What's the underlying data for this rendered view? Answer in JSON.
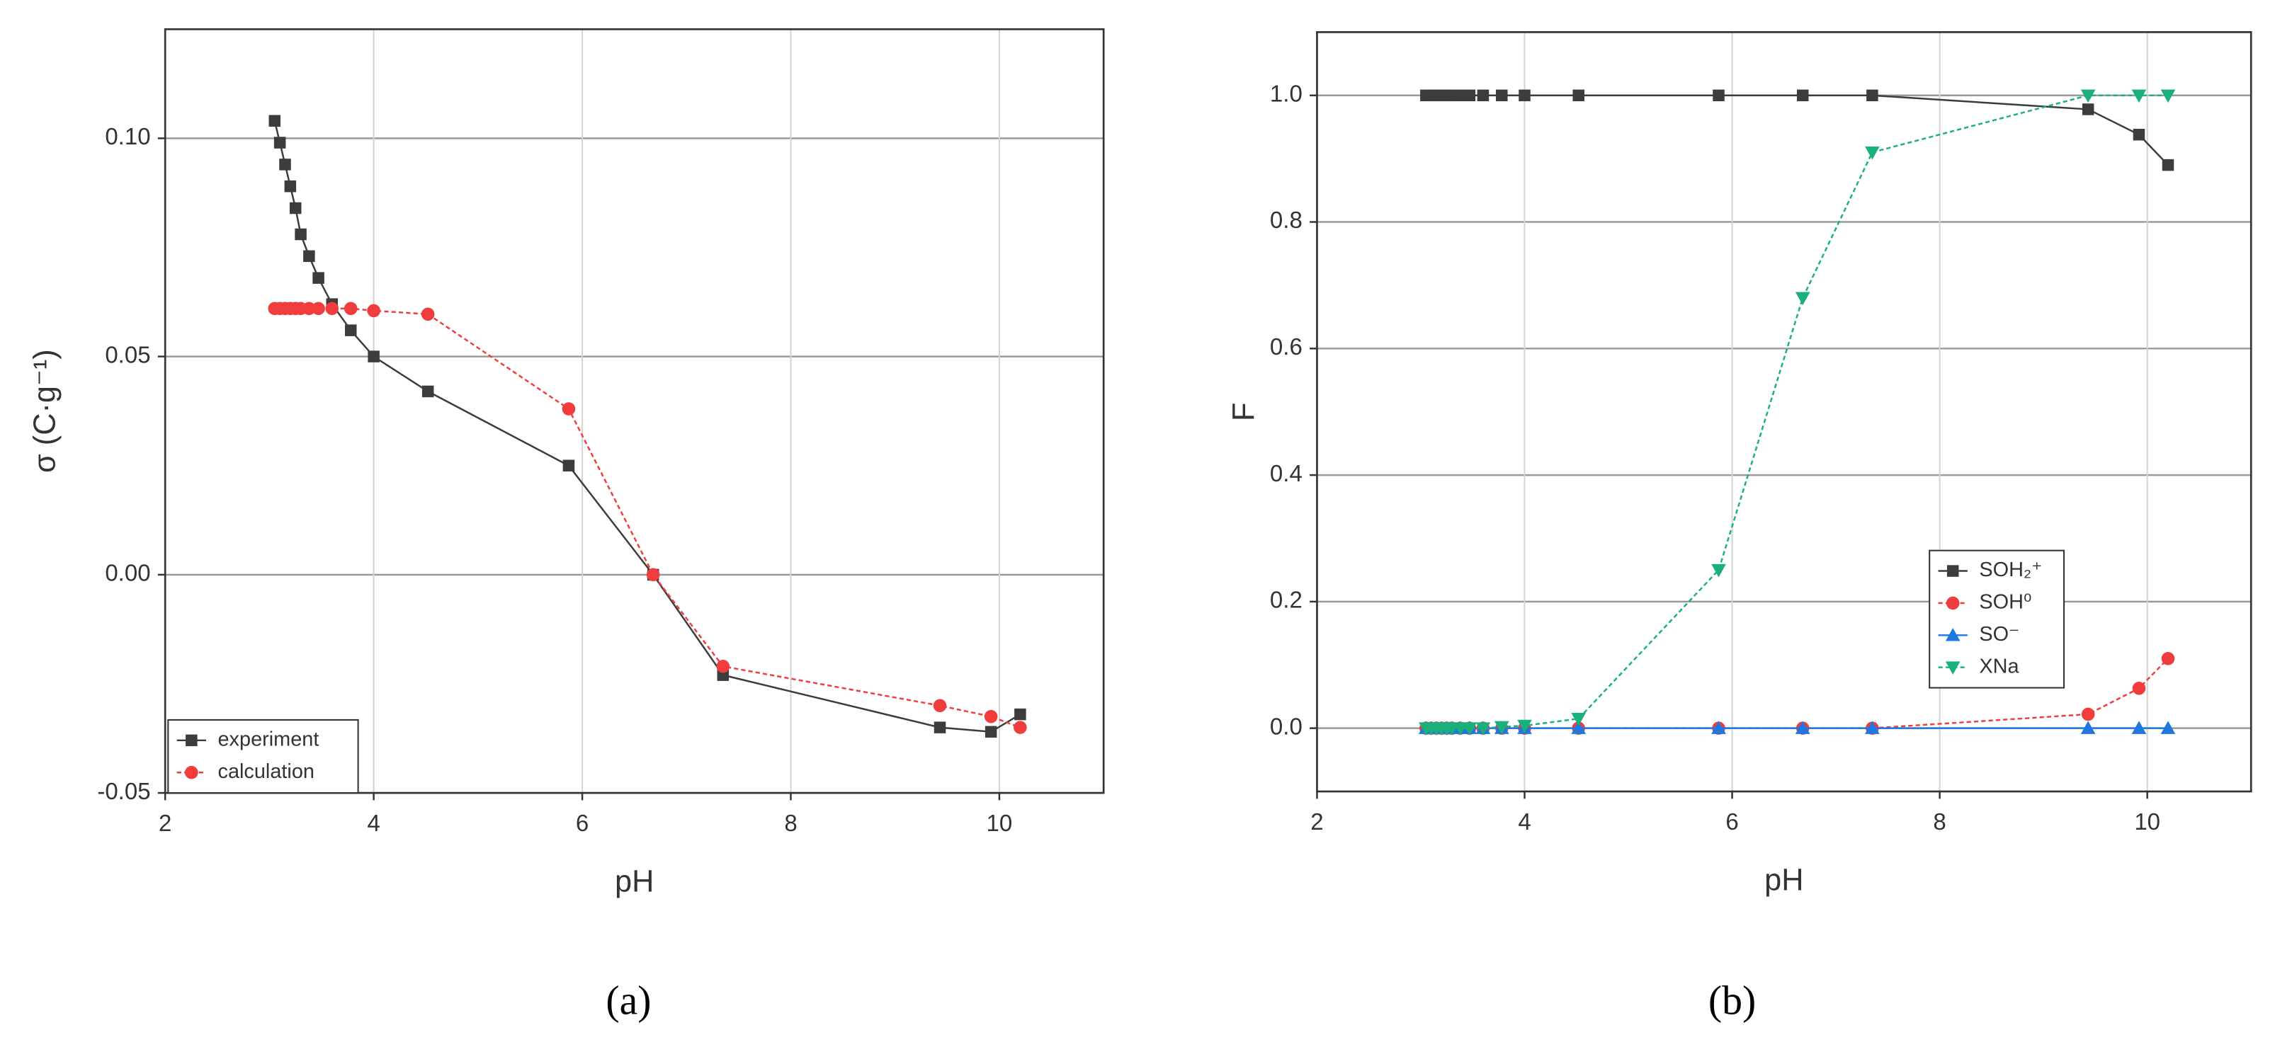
{
  "chart_data": [
    {
      "type": "line",
      "x_label": "pH",
      "y_label": "σ (C·g⁻¹)",
      "caption": "(a)",
      "xlim": [
        2,
        11
      ],
      "xticks": [
        2,
        4,
        6,
        8,
        10
      ],
      "ylim": [
        -0.05,
        0.125
      ],
      "yticks": [
        {
          "value": -0.05,
          "label": "-0.05"
        },
        {
          "value": 0,
          "label": "0.00"
        },
        {
          "value": 0.05,
          "label": "0.05"
        },
        {
          "value": 0.1,
          "label": "0.10"
        }
      ],
      "grid": true,
      "legend": "lower left",
      "x": [
        3.05,
        3.1,
        3.15,
        3.2,
        3.25,
        3.3,
        3.38,
        3.47,
        3.6,
        3.78,
        4.0,
        4.52,
        5.87,
        6.68,
        7.35,
        9.43,
        9.92,
        10.2
      ],
      "series": [
        {
          "name": "experiment",
          "color": "#3c3c3c",
          "marker": "square",
          "dash": false,
          "values": [
            0.104,
            0.099,
            0.094,
            0.089,
            0.084,
            0.078,
            0.073,
            0.068,
            0.062,
            0.056,
            0.05,
            0.042,
            0.025,
            0.0,
            -0.023,
            -0.035,
            -0.036,
            -0.032
          ]
        },
        {
          "name": "calculation",
          "color": "#f03c3c",
          "marker": "circle",
          "dash": true,
          "values": [
            0.061,
            0.061,
            0.061,
            0.061,
            0.061,
            0.061,
            0.061,
            0.061,
            0.061,
            0.061,
            0.0605,
            0.0597,
            0.038,
            0.0,
            -0.021,
            -0.03,
            -0.0325,
            -0.035
          ]
        }
      ]
    },
    {
      "type": "line",
      "x_label": "pH",
      "y_label": "F",
      "caption": "(b)",
      "xlim": [
        2,
        11
      ],
      "xticks": [
        2,
        4,
        6,
        8,
        10
      ],
      "ylim": [
        -0.1,
        1.1
      ],
      "yticks": [
        {
          "value": 0,
          "label": "0.0"
        },
        {
          "value": 0.2,
          "label": "0.2"
        },
        {
          "value": 0.4,
          "label": "0.4"
        },
        {
          "value": 0.6,
          "label": "0.6"
        },
        {
          "value": 0.8,
          "label": "0.8"
        },
        {
          "value": 1,
          "label": "1.0"
        }
      ],
      "grid": true,
      "legend": "center right",
      "x": [
        3.05,
        3.1,
        3.15,
        3.2,
        3.25,
        3.3,
        3.38,
        3.47,
        3.6,
        3.78,
        4.0,
        4.52,
        5.87,
        6.68,
        7.35,
        9.43,
        9.92,
        10.2
      ],
      "series": [
        {
          "name": "SOH₂⁺",
          "color": "#3c3c3c",
          "marker": "square",
          "dash": false,
          "values": [
            1,
            1,
            1,
            1,
            1,
            1,
            1,
            1,
            1,
            1,
            1,
            1,
            1,
            1,
            1,
            0.978,
            0.938,
            0.89
          ]
        },
        {
          "name": "SOH⁰",
          "color": "#f03c3c",
          "marker": "circle",
          "dash": true,
          "values": [
            0,
            0,
            0,
            0,
            0,
            0,
            0,
            0,
            0,
            0,
            0,
            0,
            0,
            0,
            0,
            0.022,
            0.063,
            0.11
          ]
        },
        {
          "name": "SO⁻",
          "color": "#1f77e0",
          "marker": "triangle-up",
          "dash": false,
          "values": [
            0,
            0,
            0,
            0,
            0,
            0,
            0,
            0,
            0,
            0,
            0,
            0,
            0,
            0,
            0,
            0,
            0,
            0
          ]
        },
        {
          "name": "XNa",
          "color": "#19b07a",
          "marker": "triangle-down",
          "dash": true,
          "values": [
            0,
            0,
            0,
            0,
            0,
            0,
            0,
            0,
            0,
            0.002,
            0.004,
            0.015,
            0.25,
            0.68,
            0.91,
            1.0,
            1.0,
            1.0
          ]
        }
      ]
    }
  ]
}
